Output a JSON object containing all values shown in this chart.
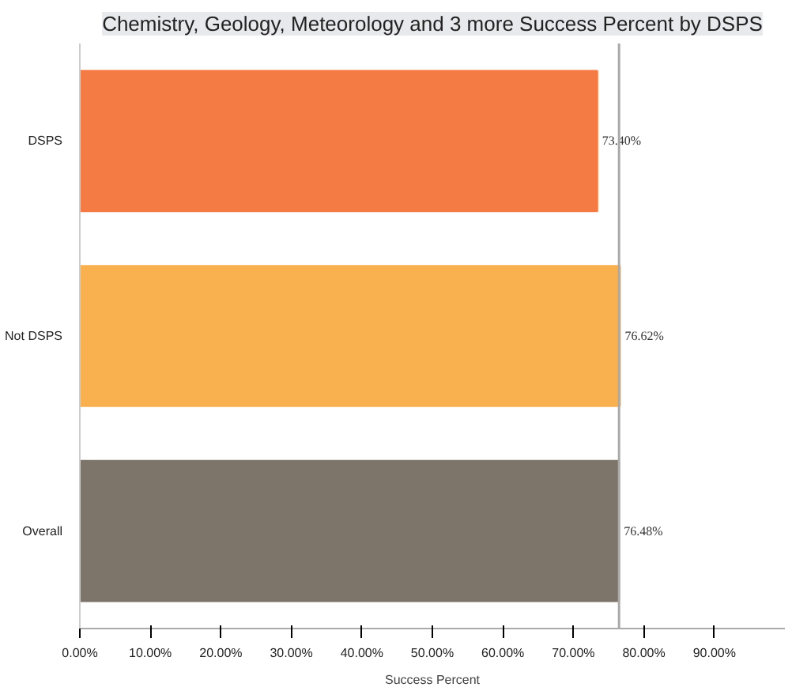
{
  "chart_data": {
    "type": "bar",
    "orientation": "horizontal",
    "title": "Chemistry, Geology, Meteorology and 3 more Success Percent by DSPS",
    "xlabel": "Success Percent",
    "categories": [
      "DSPS",
      "Not DSPS",
      "Overall"
    ],
    "values": [
      73.4,
      76.62,
      76.48
    ],
    "colors": [
      "#f47b43",
      "#f9b04e",
      "#7d746a"
    ],
    "value_labels": [
      "73.40%",
      "76.62%",
      "76.48%"
    ],
    "xlim": [
      0,
      100
    ],
    "xticks": [
      {
        "value": 0,
        "label": "0.00%"
      },
      {
        "value": 10,
        "label": "10.00%"
      },
      {
        "value": 20,
        "label": "20.00%"
      },
      {
        "value": 30,
        "label": "30.00%"
      },
      {
        "value": 40,
        "label": "40.00%"
      },
      {
        "value": 50,
        "label": "50.00%"
      },
      {
        "value": 60,
        "label": "60.00%"
      },
      {
        "value": 70,
        "label": "70.00%"
      },
      {
        "value": 80,
        "label": "80.00%"
      },
      {
        "value": 90,
        "label": "90.00%"
      }
    ],
    "ref_lines": [
      {
        "axis": "x",
        "value": 76.48,
        "color": "#aaaaaa"
      }
    ],
    "grid": false
  }
}
